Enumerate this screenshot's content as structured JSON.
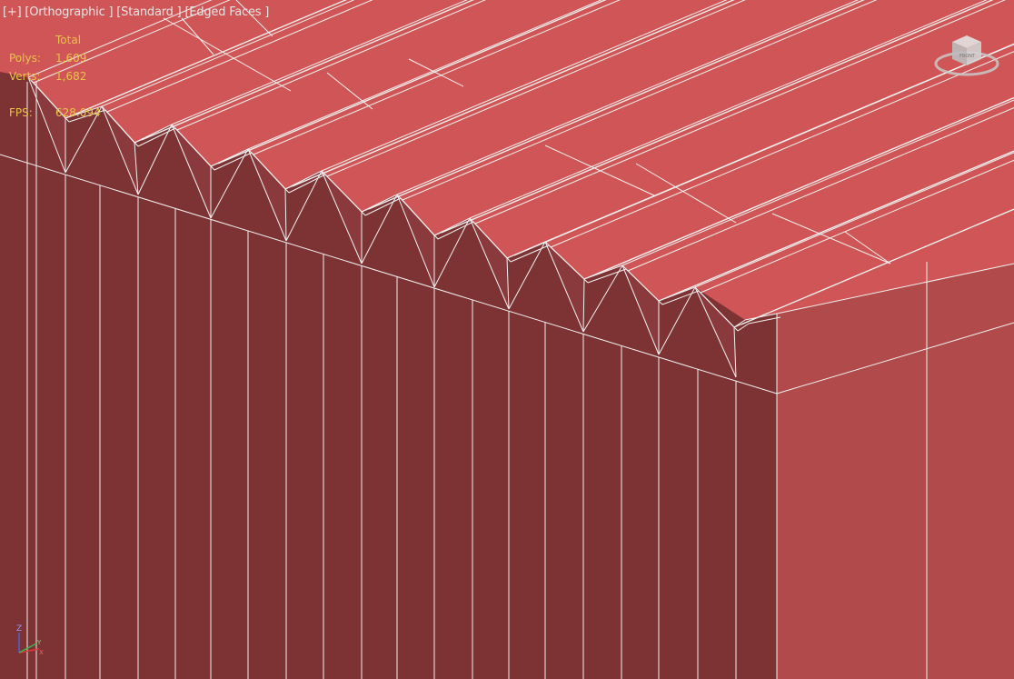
{
  "viewport": {
    "menu_label": "[+]",
    "view_label": "[Orthographic ]",
    "shading_label": "[Standard ]",
    "edges_label": "[Edged Faces ]"
  },
  "stats": {
    "total_label": "Total",
    "polys_label": "Polys:",
    "polys_value": "1,609",
    "verts_label": "Verts:",
    "verts_value": "1,682",
    "fps_label": "FPS:",
    "fps_value": "628.094"
  },
  "viewcube": {
    "icon": "viewcube-icon",
    "face_label": "FRONT"
  },
  "axis_gizmo": {
    "icon": "axis-tripod-icon",
    "z_label": "Z",
    "x_label": "X",
    "y_label": "Y"
  },
  "colors": {
    "top_face": "#cf5556",
    "side_face": "#7d3234",
    "right_face": "#b14a4b",
    "edge": "#f1f1f1",
    "stat_text": "#e8c44a",
    "label_text": "#e4e4e4"
  }
}
